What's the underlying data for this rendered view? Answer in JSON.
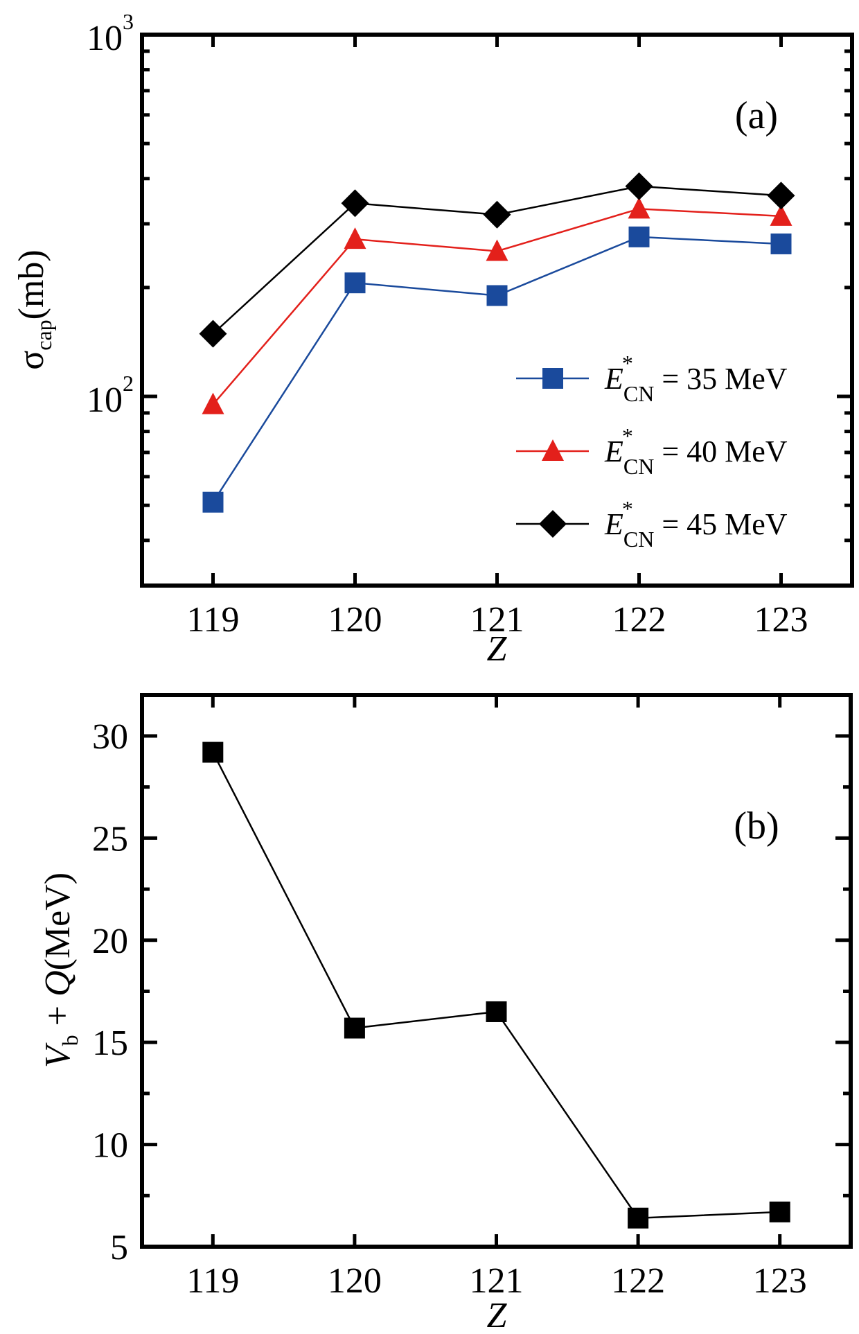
{
  "chart_data": [
    {
      "panel": "a",
      "type": "line",
      "panel_label": "(a)",
      "xlabel": "Z",
      "ylabel": {
        "symbol": "σ",
        "subscript": "cap",
        "unit": "(mb)"
      },
      "yscale": "log",
      "ylim": [
        30,
        1000
      ],
      "xlim": [
        118.5,
        123.5
      ],
      "x": [
        119,
        120,
        121,
        122,
        123
      ],
      "x_tick_labels": [
        "119",
        "120",
        "121",
        "122",
        "123"
      ],
      "y_ticks": [
        {
          "value": 100,
          "base": "10",
          "exp": "2"
        },
        {
          "value": 1000,
          "base": "10",
          "exp": "3"
        }
      ],
      "grid": false,
      "legend_position": "center-right",
      "series": [
        {
          "name": "E*CN = 35 MeV",
          "label": {
            "sym": "E",
            "sup": "*",
            "sub": "CN",
            "rest": " = 35 MeV"
          },
          "marker": "square",
          "color": "#1a4a9c",
          "values": [
            51,
            206,
            190,
            276,
            264
          ]
        },
        {
          "name": "E*CN = 40 MeV",
          "label": {
            "sym": "E",
            "sup": "*",
            "sub": "CN",
            "rest": " = 40 MeV"
          },
          "marker": "triangle",
          "color": "#e3201b",
          "values": [
            95,
            272,
            252,
            330,
            315
          ]
        },
        {
          "name": "E*CN = 45 MeV",
          "label": {
            "sym": "E",
            "sup": "*",
            "sub": "CN",
            "rest": " = 45 MeV"
          },
          "marker": "diamond",
          "color": "#000000",
          "values": [
            149,
            342,
            318,
            381,
            359
          ]
        }
      ]
    },
    {
      "panel": "b",
      "type": "line",
      "panel_label": "(b)",
      "xlabel": "Z",
      "ylabel": {
        "v": "V",
        "v_sub": "b",
        "plus": " + ",
        "q": "Q",
        "unit": "(MeV)"
      },
      "yscale": "linear",
      "ylim": [
        5,
        32
      ],
      "xlim": [
        118.5,
        123.5
      ],
      "x": [
        119,
        120,
        121,
        122,
        123
      ],
      "x_tick_labels": [
        "119",
        "120",
        "121",
        "122",
        "123"
      ],
      "y_ticks": [
        5,
        10,
        15,
        20,
        25,
        30
      ],
      "y_tick_labels": [
        "5",
        "10",
        "15",
        "20",
        "25",
        "30"
      ],
      "grid": false,
      "series": [
        {
          "name": "Vb + Q",
          "marker": "square",
          "color": "#000000",
          "values": [
            29.2,
            15.7,
            16.5,
            6.4,
            6.7
          ]
        }
      ]
    }
  ]
}
